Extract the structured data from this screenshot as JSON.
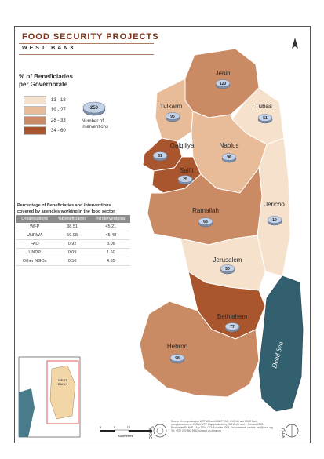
{
  "title": "FOOD SECURITY PROJECTS",
  "subtitle": "WEST BANK",
  "legend": {
    "title_prefix": "% of Beneficiaries",
    "title_suffix": "per Governorate",
    "classes": [
      {
        "label": "13 - 18",
        "color": "#f6e1cd"
      },
      {
        "label": "19 - 27",
        "color": "#e8bc98"
      },
      {
        "label": "28 - 33",
        "color": "#c98a64"
      },
      {
        "label": "34 - 60",
        "color": "#a9562f"
      }
    ],
    "interventions_sample": "250",
    "interventions_label_line1": "Number of",
    "interventions_label_line2": "interventions"
  },
  "table": {
    "title_line1": "Percentage of Beneficiaries and Interventions",
    "title_line2": "covered by agencies working in the food sector",
    "headers": [
      "Organisations",
      "%Beneficiaries",
      "%Interventions"
    ],
    "rows": [
      [
        "WFP",
        "38.51",
        "45.21"
      ],
      [
        "UNRWA",
        "59.98",
        "45.48"
      ],
      [
        "FAO",
        "0.92",
        "3.06"
      ],
      [
        "UNDP",
        "0.09",
        "1.60"
      ],
      [
        "Other NGOs",
        "0.50",
        "4.65"
      ]
    ]
  },
  "governorates": [
    {
      "name": "Jenin",
      "interventions": "120",
      "class": 2
    },
    {
      "name": "Tulkarm",
      "interventions": "96",
      "class": 1
    },
    {
      "name": "Tubas",
      "interventions": "51",
      "class": 0
    },
    {
      "name": "Nablus",
      "interventions": "96",
      "class": 1
    },
    {
      "name": "Qalqiliya",
      "interventions": "51",
      "class": 3
    },
    {
      "name": "Salfit",
      "interventions": "25",
      "class": 3
    },
    {
      "name": "Jericho",
      "interventions": "19",
      "class": 0
    },
    {
      "name": "Ramallah",
      "interventions": "68",
      "class": 2
    },
    {
      "name": "Jerusalem",
      "interventions": "50",
      "class": 0
    },
    {
      "name": "Bethlehem",
      "interventions": "77",
      "class": 3
    },
    {
      "name": "Hebron",
      "interventions": "98",
      "class": 2
    }
  ],
  "dead_sea_label": "Dead Sea",
  "inset": {
    "label_line1": "WEST",
    "label_line2": "BANK"
  },
  "scale": {
    "ticks": [
      "0",
      "5",
      "10",
      "20"
    ],
    "unit": "Kilometers"
  },
  "logos": {
    "left": "OCHA",
    "right": "WHO"
  },
  "footer": "Source of non-production WFP WB and/UNDP FAO, WHO All and IDMC Data compilation/source: OCHA-WFP. Map produced by OCHA oPt and ... Created 2005. Boundaries PA MoP - July 2004, OCHA update 2006. For comments contact: xxx@ocha.org Tel: +972 (0)2 582 9962 ochaopt.un.ocha.org"
}
